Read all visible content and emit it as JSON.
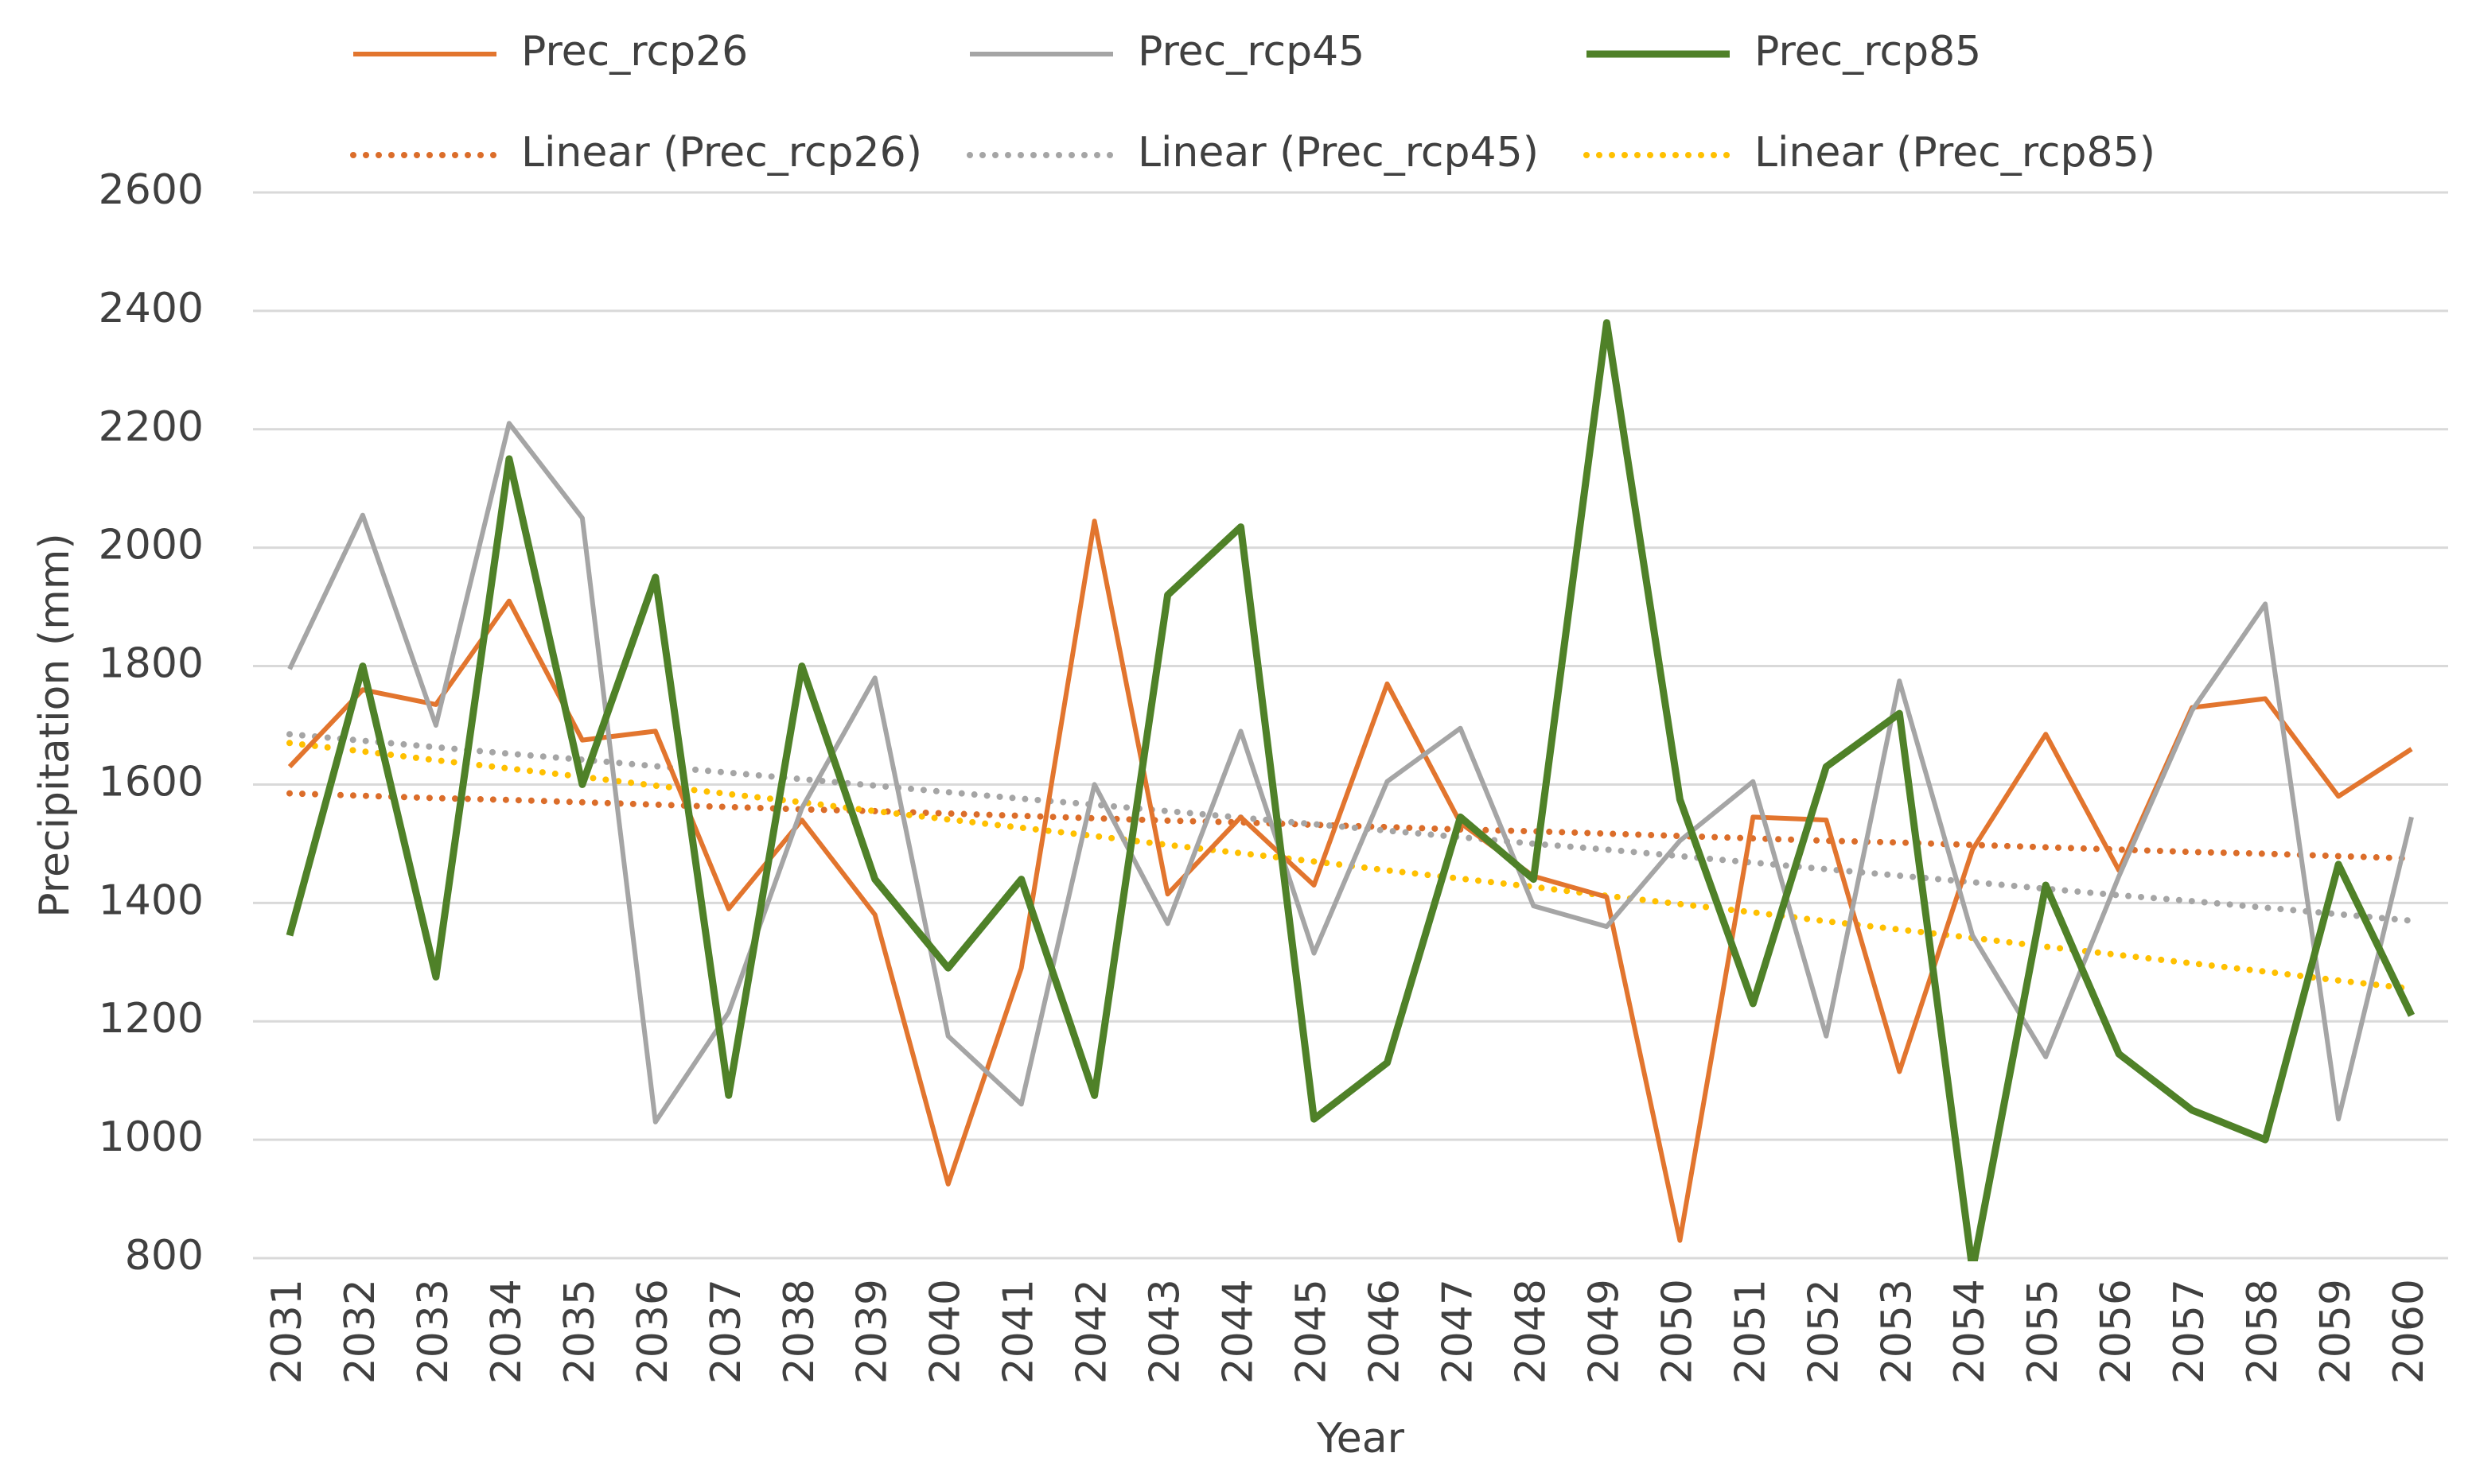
{
  "chart_data": {
    "type": "line",
    "x_label": "Year",
    "y_label": "Precipitation (mm)",
    "categories": [
      "2031",
      "2032",
      "2033",
      "2034",
      "2035",
      "2036",
      "2037",
      "2038",
      "2039",
      "2040",
      "2041",
      "2042",
      "2043",
      "2044",
      "2045",
      "2046",
      "2047",
      "2048",
      "2049",
      "2050",
      "2051",
      "2052",
      "2053",
      "2054",
      "2055",
      "2056",
      "2057",
      "2058",
      "2059",
      "2060"
    ],
    "series": [
      {
        "name": "Prec_rcp26",
        "color": "#e2752e",
        "style": "solid",
        "values": [
          1630,
          1760,
          1735,
          1910,
          1675,
          1690,
          1390,
          1540,
          1380,
          925,
          1290,
          2045,
          1415,
          1545,
          1430,
          1770,
          1535,
          1445,
          1410,
          830,
          1545,
          1540,
          1115,
          1490,
          1685,
          1455,
          1730,
          1745,
          1580,
          1660
        ]
      },
      {
        "name": "Prec_rcp45",
        "color": "#a5a5a5",
        "style": "solid",
        "values": [
          1795,
          2055,
          1700,
          2210,
          2050,
          1030,
          1215,
          1560,
          1780,
          1175,
          1060,
          1600,
          1365,
          1690,
          1315,
          1605,
          1695,
          1395,
          1360,
          1505,
          1605,
          1175,
          1775,
          1345,
          1140,
          1445,
          1725,
          1905,
          1035,
          1545
        ]
      },
      {
        "name": "Prec_rcp85",
        "color": "#4f8128",
        "style": "solid",
        "values": [
          1345,
          1800,
          1275,
          2150,
          1600,
          1950,
          1075,
          1800,
          1440,
          1290,
          1440,
          1075,
          1920,
          2035,
          1035,
          1130,
          1545,
          1440,
          2380,
          1575,
          1230,
          1630,
          1720,
          780,
          1430,
          1145,
          1050,
          1000,
          1465,
          1210
        ]
      },
      {
        "name": "Linear (Prec_rcp26)",
        "color": "#db6d2a",
        "style": "dotted",
        "values": [
          1585,
          1581,
          1577,
          1574,
          1570,
          1566,
          1562,
          1558,
          1555,
          1551,
          1547,
          1543,
          1539,
          1536,
          1532,
          1528,
          1524,
          1521,
          1517,
          1513,
          1509,
          1505,
          1502,
          1498,
          1494,
          1490,
          1486,
          1483,
          1479,
          1475
        ]
      },
      {
        "name": "Linear (Prec_rcp45)",
        "color": "#a5a5a5",
        "style": "dotted",
        "values": [
          1685,
          1674,
          1663,
          1652,
          1642,
          1631,
          1620,
          1609,
          1598,
          1587,
          1576,
          1566,
          1555,
          1544,
          1533,
          1522,
          1511,
          1500,
          1490,
          1479,
          1468,
          1457,
          1446,
          1435,
          1424,
          1413,
          1403,
          1392,
          1381,
          1370
        ]
      },
      {
        "name": "Linear (Prec_rcp85)",
        "color": "#ffc000",
        "style": "dotted",
        "values": [
          1670,
          1656,
          1641,
          1627,
          1613,
          1598,
          1584,
          1570,
          1555,
          1541,
          1527,
          1513,
          1498,
          1484,
          1470,
          1455,
          1441,
          1427,
          1412,
          1398,
          1384,
          1369,
          1355,
          1341,
          1326,
          1312,
          1298,
          1284,
          1269,
          1255
        ]
      }
    ],
    "ylim": [
      800,
      2600
    ],
    "yticks": [
      800,
      1000,
      1200,
      1400,
      1600,
      1800,
      2000,
      2200,
      2400,
      2600
    ],
    "grid": true,
    "legend": "top"
  }
}
